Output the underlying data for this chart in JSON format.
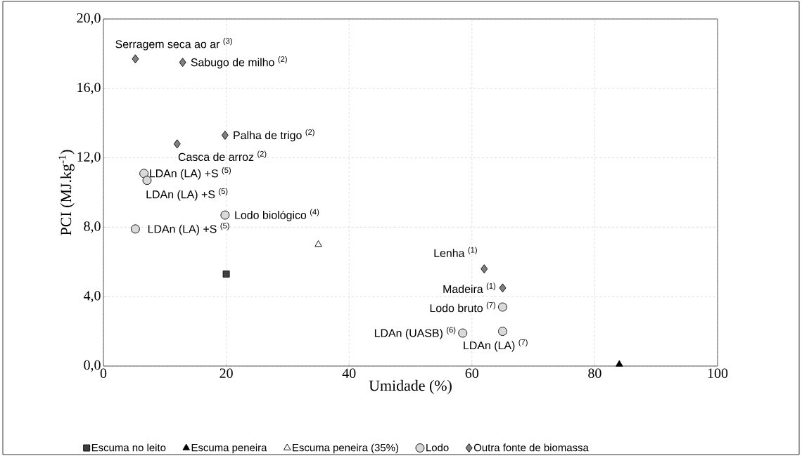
{
  "chart_data": {
    "type": "scatter",
    "xlabel": "Umidade (%)",
    "ylabel": "PCI (MJ.kg$^{-1}$)",
    "xlim": [
      0,
      100
    ],
    "ylim": [
      0,
      20
    ],
    "xticks": [
      0,
      20,
      40,
      60,
      80,
      100
    ],
    "yticks": [
      {
        "value": 0,
        "label": "0,0"
      },
      {
        "value": 4,
        "label": "4,0"
      },
      {
        "value": 8,
        "label": "8,0"
      },
      {
        "value": 12,
        "label": "12,0"
      },
      {
        "value": 16,
        "label": "16,0"
      },
      {
        "value": 20,
        "label": "20,0"
      }
    ],
    "grid": true,
    "legend": "bottom",
    "series": [
      {
        "name": "Escuma no leito",
        "color": "#404040",
        "marker": "square",
        "x": [
          20
        ],
        "values": [
          5.3
        ]
      },
      {
        "name": "Escuma peneira",
        "color": "#000000",
        "marker": "triangle",
        "x": [
          84
        ],
        "values": [
          0.1
        ]
      },
      {
        "name": "Escuma peneira (35%)",
        "color": "#ffffff",
        "marker": "triangle",
        "x": [
          35
        ],
        "values": [
          7.0
        ]
      },
      {
        "name": "Lodo",
        "color": "#d9d9d9",
        "marker": "circle",
        "x": [
          6.6,
          7.1,
          19.8,
          5.2,
          65,
          58.5,
          65
        ],
        "values": [
          11.1,
          10.7,
          8.7,
          7.9,
          3.4,
          1.9,
          2.0
        ]
      },
      {
        "name": "Outra fonte de biomassa",
        "color": "#808080",
        "marker": "diamond",
        "x": [
          5.2,
          12.9,
          19.8,
          12.0,
          62,
          65
        ],
        "values": [
          17.7,
          17.5,
          13.3,
          12.8,
          5.6,
          4.5
        ]
      }
    ],
    "annotations": [
      {
        "text": "Serragem seca ao ar $^{(3)}$",
        "x": 5.2,
        "y": 17.7
      },
      {
        "text": "Sabugo de milho $^{(2)}$",
        "x": 12.9,
        "y": 17.5
      },
      {
        "text": "Palha de trigo $^{(2)}$",
        "x": 19.8,
        "y": 13.3
      },
      {
        "text": "Casca de arroz $^{(2)}$",
        "x": 12.0,
        "y": 12.8
      },
      {
        "text": "LDAn (LA) +S $^{(5)}$",
        "x": 6.6,
        "y": 11.1
      },
      {
        "text": "LDAn (LA) +S $^{(5)}$",
        "x": 7.1,
        "y": 10.7
      },
      {
        "text": "Lodo biológico $^{(4)}$",
        "x": 19.8,
        "y": 8.7
      },
      {
        "text": "LDAn (LA) +S $^{(5)}$",
        "x": 5.2,
        "y": 7.9
      },
      {
        "text": "Lenha $^{(1)}$",
        "x": 62,
        "y": 5.6
      },
      {
        "text": "Madeira $^{(1)}$",
        "x": 65,
        "y": 4.5
      },
      {
        "text": "Lodo bruto $^{(7)}$",
        "x": 65,
        "y": 3.4
      },
      {
        "text": "LDAn (UASB) $^{(6)}$",
        "x": 58.5,
        "y": 1.9
      },
      {
        "text": "LDAn (LA) $^{(7)}$",
        "x": 65,
        "y": 2.0
      }
    ]
  }
}
